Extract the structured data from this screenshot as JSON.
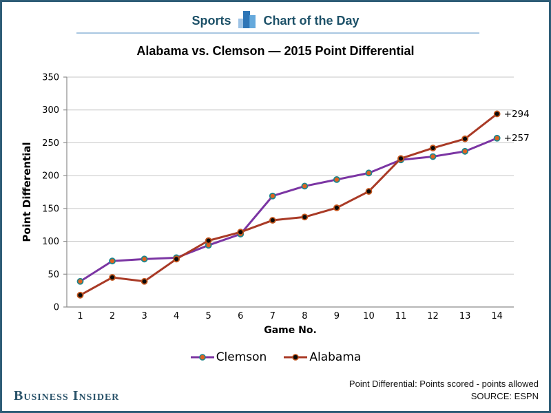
{
  "header": {
    "section": "Sports",
    "title": "Chart of the Day",
    "icon": "bar-chart-icon",
    "text_color": "#1d5168",
    "rule_color": "#a9c7e1"
  },
  "chart_data": {
    "type": "line",
    "title": "Alabama vs. Clemson — 2015 Point Differential",
    "xlabel": "Game No.",
    "ylabel": "Point Differential",
    "x": [
      1,
      2,
      3,
      4,
      5,
      6,
      7,
      8,
      9,
      10,
      11,
      12,
      13,
      14
    ],
    "ylim": [
      0,
      350
    ],
    "ytick_step": 50,
    "grid": true,
    "legend_position": "bottom-center",
    "series": [
      {
        "name": "Clemson",
        "values": [
          39,
          70,
          73,
          75,
          94,
          111,
          169,
          184,
          194,
          204,
          224,
          229,
          237,
          257
        ],
        "line_color": "#7b35a3",
        "marker_fill": "#e0621f",
        "marker_edge": "#1d878d",
        "end_label": "+257"
      },
      {
        "name": "Alabama",
        "values": [
          18,
          45,
          39,
          73,
          101,
          114,
          132,
          137,
          151,
          176,
          226,
          242,
          256,
          294
        ],
        "line_color": "#a93a26",
        "marker_fill": "#0a0a0a",
        "marker_edge": "#c4571f",
        "end_label": "+294"
      }
    ]
  },
  "footer": {
    "brand": "Business Insider",
    "note": "Point Differential: Points scored - points allowed",
    "source": "SOURCE: ESPN"
  },
  "colors": {
    "frame_border": "#2e5d77",
    "grid_line": "#c6c6c6",
    "axis_line": "#8c8c8c"
  }
}
